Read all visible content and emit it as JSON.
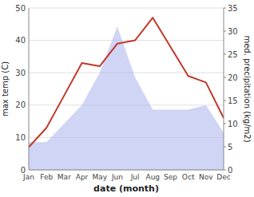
{
  "chart_data": {
    "type": "line",
    "categories": [
      "Jan",
      "Feb",
      "Mar",
      "Apr",
      "May",
      "Jun",
      "Jul",
      "Aug",
      "Sep",
      "Oct",
      "Nov",
      "Dec"
    ],
    "x_label": "date (month)",
    "y_label": "max temp (C)",
    "y2_label": "med. precipitation (kg/m2)",
    "series": [
      {
        "type": "area",
        "axis": "y2",
        "color": "#b0b8ee",
        "values": [
          6,
          6,
          10,
          14,
          21,
          31,
          20,
          13,
          13,
          13,
          14,
          8
        ]
      },
      {
        "type": "line",
        "color": "#c0392b",
        "values": [
          7,
          13,
          23,
          33,
          32,
          39,
          40,
          47,
          38,
          29,
          27,
          16
        ]
      }
    ],
    "ylim": [
      0,
      50
    ],
    "yticks": [
      0,
      10,
      20,
      30,
      40,
      50
    ],
    "y2lim": [
      0,
      35
    ],
    "y2ticks": [
      0,
      5,
      10,
      15,
      20,
      25,
      30,
      35
    ],
    "grid": true
  }
}
